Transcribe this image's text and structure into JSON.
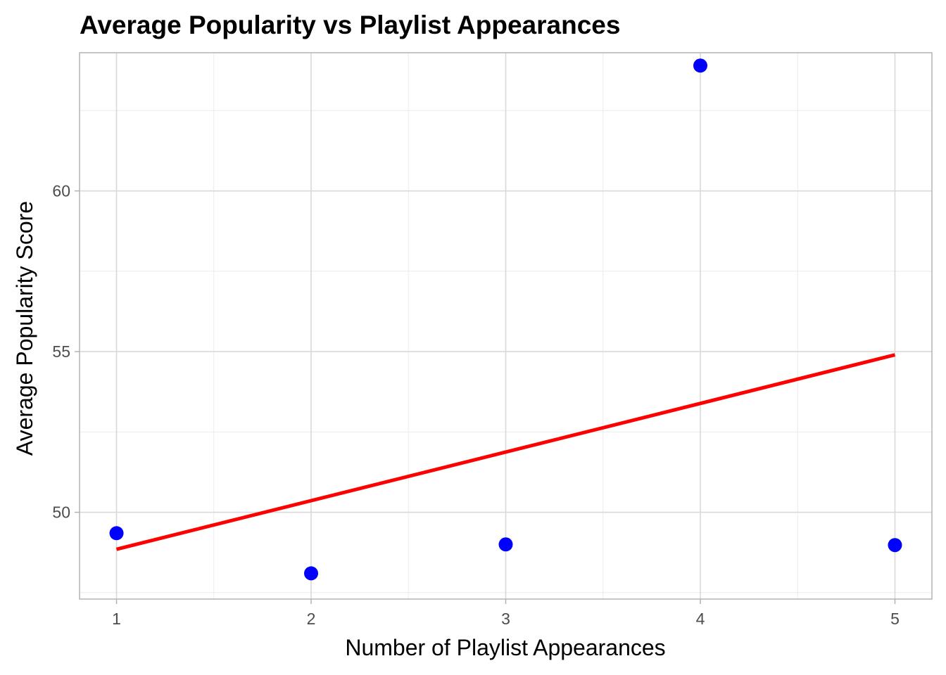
{
  "chart_data": {
    "type": "scatter",
    "title": "Average Popularity vs Playlist Appearances",
    "xlabel": "Number of Playlist Appearances",
    "ylabel": "Average Popularity Score",
    "xlim": [
      0.81,
      5.19
    ],
    "ylim": [
      47.3,
      64.3
    ],
    "x_ticks": [
      1,
      2,
      3,
      4,
      5
    ],
    "y_ticks": [
      50,
      55,
      60
    ],
    "x_minor_ticks": [
      1.5,
      2.5,
      3.5,
      4.5
    ],
    "y_minor_ticks": [
      47.5,
      52.5,
      57.5,
      62.5
    ],
    "grid": true,
    "series": [
      {
        "type": "scatter",
        "color": "#0000ff",
        "points": [
          {
            "x": 1,
            "y": 49.35
          },
          {
            "x": 2,
            "y": 48.1
          },
          {
            "x": 3,
            "y": 49.0
          },
          {
            "x": 4,
            "y": 63.9
          },
          {
            "x": 5,
            "y": 48.98
          }
        ]
      },
      {
        "type": "line",
        "color": "#ff0000",
        "points": [
          {
            "x": 1,
            "y": 48.85
          },
          {
            "x": 5,
            "y": 54.9
          }
        ]
      }
    ]
  }
}
